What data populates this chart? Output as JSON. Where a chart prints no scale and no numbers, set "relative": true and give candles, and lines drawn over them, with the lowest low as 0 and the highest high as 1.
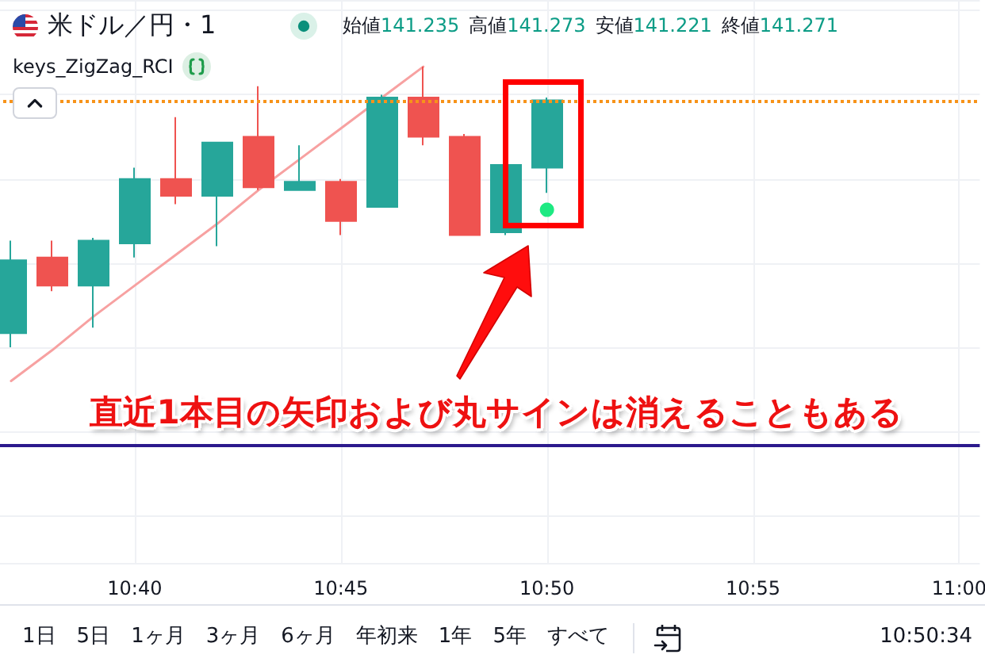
{
  "chart_data": {
    "type": "candlestick",
    "title": "米ドル／円・1",
    "subtitle": "始値141.235 高値141.273 安値141.221 終値141.271",
    "categories": [
      null,
      null,
      null,
      "10:40",
      null,
      null,
      null,
      null,
      "10:45",
      null,
      null,
      null,
      null,
      "10:50",
      null,
      null,
      null,
      null,
      "10:55",
      null,
      null,
      null,
      null,
      "11:00"
    ],
    "ohlc": [
      [
        0.05,
        0.38,
        0,
        0.31
      ],
      [
        0.32,
        0.38,
        0.2,
        0.22
      ],
      [
        0.22,
        0.39,
        0.07,
        0.38
      ],
      [
        0.37,
        0.64,
        0.32,
        0.6
      ],
      [
        0.6,
        0.82,
        0.51,
        0.54
      ],
      [
        0.54,
        0.73,
        0.36,
        0.73
      ],
      [
        0.75,
        0.93,
        0.56,
        0.57
      ],
      [
        0.56,
        0.72,
        0.56,
        0.59
      ],
      [
        0.59,
        0.6,
        0.4,
        0.45
      ],
      [
        0.5,
        0.9,
        0.5,
        0.89
      ],
      [
        0.89,
        1,
        0.72,
        0.75
      ],
      [
        0.75,
        0.76,
        0.4,
        0.4
      ],
      [
        0.41,
        0.65,
        0.4,
        0.65
      ],
      [
        0.64,
        0.89,
        0.55,
        0.88
      ],
      null,
      null,
      null,
      null,
      null,
      null,
      null,
      null,
      null,
      null
    ],
    "colors": [
      "#26a69a",
      "#ef5350",
      "#26a69a",
      "#26a69a",
      "#ef5350",
      "#26a69a",
      "#ef5350",
      "#26a69a",
      "#ef5350",
      "#26a69a",
      "#ef5350",
      "#ef5350",
      "#26a69a",
      "#26a69a",
      null,
      null,
      null,
      null,
      null,
      null,
      null,
      null,
      null,
      null
    ],
    "relative": true,
    "series": [
      {
        "type": "line",
        "values": [
          -0.12,
          -0.01,
          0.11,
          0.22,
          0.33,
          0.44,
          0.56,
          0.67,
          0.78,
          0.89,
          1,
          null,
          null,
          null,
          null,
          null,
          null,
          null,
          null,
          null,
          null,
          null,
          null,
          null
        ],
        "color": "#f7a1a1",
        "marker": "none"
      },
      {
        "type": "scatter",
        "values": [
          null,
          null,
          null,
          null,
          null,
          null,
          null,
          null,
          null,
          null,
          null,
          null,
          null,
          0.49,
          null,
          null,
          null,
          null,
          null,
          null,
          null,
          null,
          null,
          null
        ],
        "color": "#1de982",
        "marker": "circle"
      }
    ],
    "ref_lines": [
      {
        "axis": "y",
        "value": 0.88,
        "color": "#f7931a",
        "line_style": "dotted"
      },
      {
        "axis": "y",
        "value": -0.35,
        "color": "#2c1a8c",
        "line_style": "solid"
      }
    ],
    "annotations": [
      "直近1本目の矢印および丸サインは消えることもある",
      "keys_ZigZag_RCI",
      "1日",
      "5日",
      "1ヶ月",
      "3ヶ月",
      "6ヶ月",
      "年初来",
      "1年",
      "5年",
      "すべて",
      "10:50:34"
    ],
    "grid": true
  }
}
